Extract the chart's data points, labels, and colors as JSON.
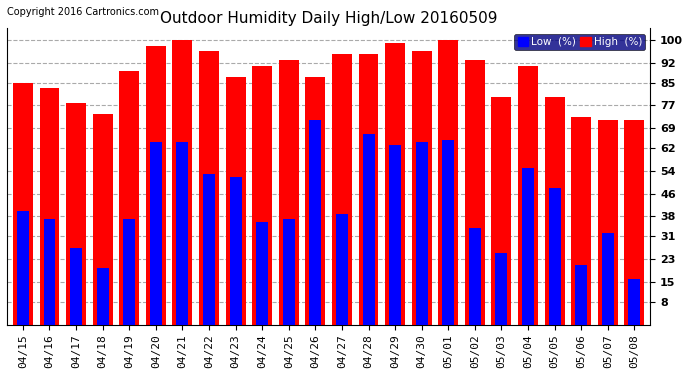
{
  "title": "Outdoor Humidity Daily High/Low 20160509",
  "copyright": "Copyright 2016 Cartronics.com",
  "legend_low": "Low  (%)",
  "legend_high": "High  (%)",
  "dates": [
    "04/15",
    "04/16",
    "04/17",
    "04/18",
    "04/19",
    "04/20",
    "04/21",
    "04/22",
    "04/23",
    "04/24",
    "04/25",
    "04/26",
    "04/27",
    "04/28",
    "04/29",
    "04/30",
    "05/01",
    "05/02",
    "05/03",
    "05/04",
    "05/05",
    "05/06",
    "05/07",
    "05/08"
  ],
  "high": [
    85,
    83,
    78,
    74,
    89,
    98,
    100,
    96,
    87,
    91,
    93,
    87,
    95,
    95,
    99,
    96,
    100,
    93,
    80,
    91,
    80,
    73,
    72,
    72
  ],
  "low": [
    40,
    37,
    27,
    20,
    37,
    64,
    64,
    53,
    52,
    36,
    37,
    72,
    39,
    67,
    63,
    64,
    65,
    34,
    25,
    55,
    48,
    21,
    32,
    16
  ],
  "bar_color_high": "#ff0000",
  "bar_color_low": "#0000ff",
  "background_color": "#ffffff",
  "plot_bg_color": "#ffffff",
  "grid_color": "#aaaaaa",
  "yticks": [
    8,
    15,
    23,
    31,
    38,
    46,
    54,
    62,
    69,
    77,
    85,
    92,
    100
  ],
  "ylim": [
    0,
    104
  ],
  "title_fontsize": 11,
  "tick_fontsize": 8,
  "legend_fontsize": 7.5,
  "copyright_fontsize": 7
}
